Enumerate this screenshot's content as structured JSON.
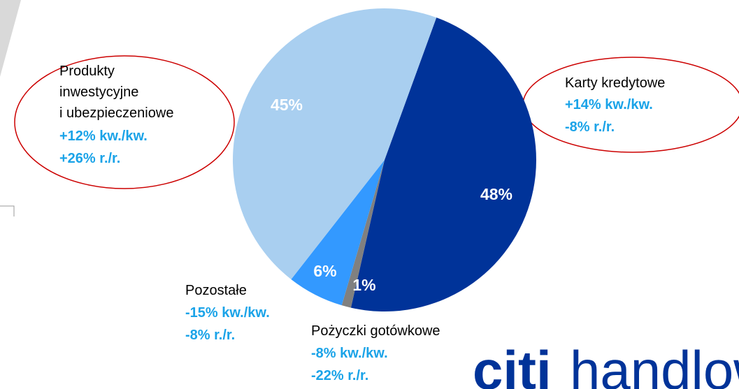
{
  "chart_data": {
    "type": "pie",
    "categories": [
      [
        "Karty kredytowe"
      ],
      [
        "Pożyczki gotówkowe"
      ],
      [
        "Pozostałe"
      ],
      [
        "Produkty",
        "inwestycyjne",
        "i ubezpieczeniowe"
      ]
    ],
    "values": [
      48,
      1,
      6,
      45
    ],
    "value_labels": [
      "48%",
      "1%",
      "6%",
      "45%"
    ],
    "colors": [
      "#003399",
      "#808080",
      "#3399ff",
      "#a9cff0"
    ],
    "changes": [
      [
        "+14% kw./kw.",
        "-8% r./r."
      ],
      [
        "-8% kw./kw.",
        "-22% r./r."
      ],
      [
        "-15% kw./kw.",
        "-8% r./r."
      ],
      [
        "+12% kw./kw.",
        "+26% r./r."
      ]
    ],
    "logo": [
      "citi",
      "handlowy"
    ]
  }
}
